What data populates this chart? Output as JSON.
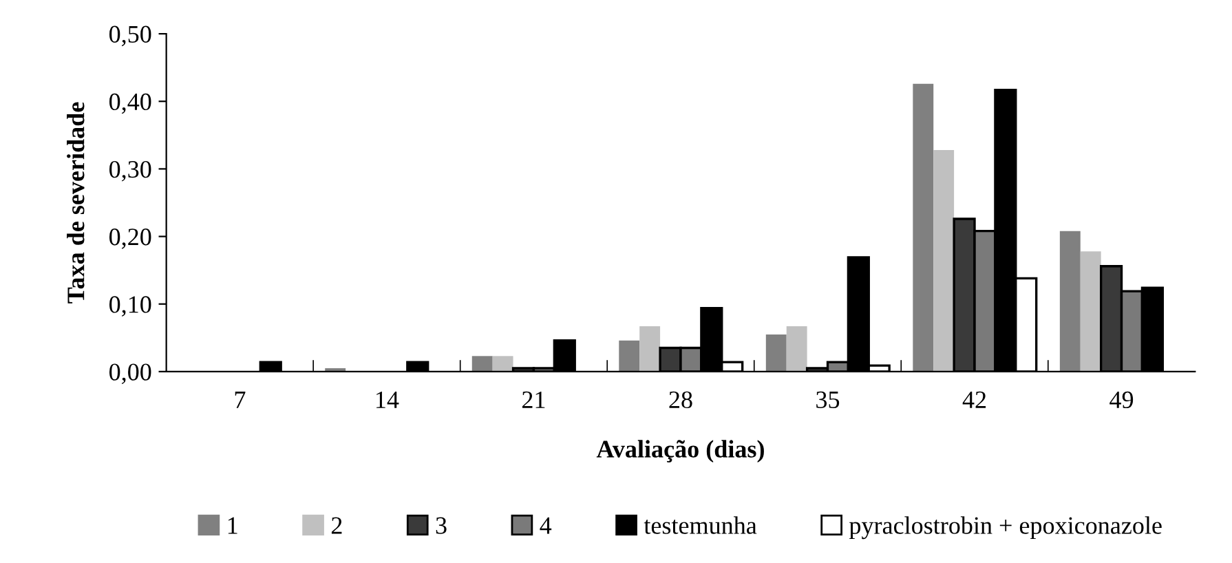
{
  "chart_data": {
    "type": "bar",
    "xlabel": "Avaliação (dias)",
    "ylabel": "Taxa de severidade",
    "categories": [
      "7",
      "14",
      "21",
      "28",
      "35",
      "42",
      "49"
    ],
    "series": [
      {
        "name": "1",
        "color": "#808080",
        "values": [
          null,
          0.005,
          0.023,
          0.046,
          0.055,
          0.426,
          0.208
        ]
      },
      {
        "name": "2",
        "color": "#c0c0c0",
        "values": [
          null,
          null,
          0.023,
          0.067,
          0.067,
          0.328,
          0.178
        ]
      },
      {
        "name": "3",
        "color": "#3a3a3a",
        "values": [
          null,
          null,
          0.005,
          0.035,
          0.005,
          0.226,
          0.156
        ]
      },
      {
        "name": "4",
        "color": "#7a7a7a",
        "values": [
          null,
          null,
          0.005,
          0.035,
          0.014,
          0.208,
          0.119
        ]
      },
      {
        "name": "testemunha",
        "color": "#000000",
        "values": [
          0.014,
          0.014,
          0.046,
          0.094,
          0.169,
          0.417,
          0.124
        ]
      },
      {
        "name": "pyraclostrobin + epoxiconazole",
        "color": "#ffffff",
        "values": [
          null,
          null,
          null,
          0.014,
          0.009,
          0.138,
          null
        ]
      }
    ],
    "ylim": [
      0,
      0.5
    ],
    "yticks": [
      {
        "value": 0,
        "label": "0,00"
      },
      {
        "value": 0.1,
        "label": "0,10"
      },
      {
        "value": 0.2,
        "label": "0,20"
      },
      {
        "value": 0.3,
        "label": "0,30"
      },
      {
        "value": 0.4,
        "label": "0,40"
      },
      {
        "value": 0.5,
        "label": "0,50"
      }
    ],
    "grid": false,
    "legend": "bottom"
  }
}
